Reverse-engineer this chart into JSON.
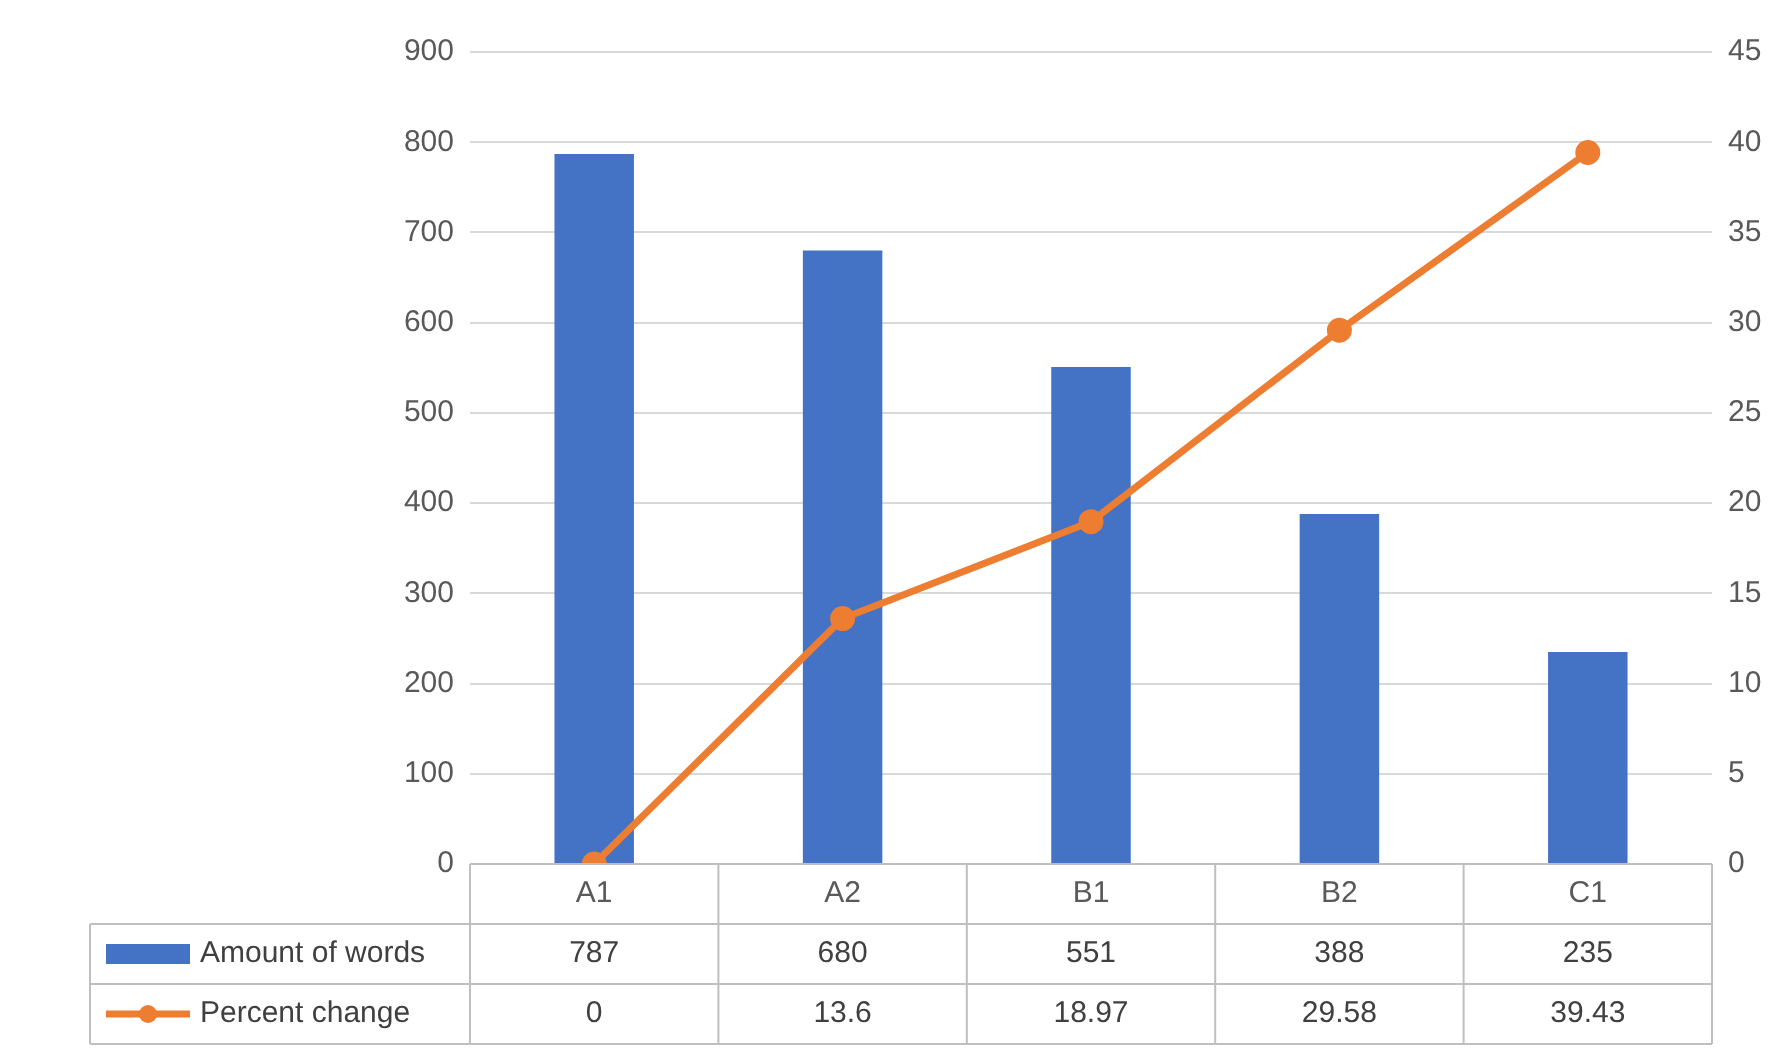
{
  "chart_data": {
    "type": "bar",
    "categories": [
      "A1",
      "A2",
      "B1",
      "B2",
      "C1"
    ],
    "series": [
      {
        "name": "Amount of words",
        "color": "#4472c4",
        "values": [
          787,
          680,
          551,
          388,
          235
        ]
      },
      {
        "name": "Percent change",
        "type": "line",
        "axis": "y2",
        "color": "#ed7d31",
        "values": [
          0,
          13.6,
          18.97,
          29.58,
          39.43
        ]
      }
    ],
    "ylim": [
      0,
      900
    ],
    "yticks": [
      0,
      100,
      200,
      300,
      400,
      500,
      600,
      700,
      800,
      900
    ],
    "y2lim": [
      0,
      45
    ],
    "y2ticks": [
      0,
      5,
      10,
      15,
      20,
      25,
      30,
      35,
      40,
      45
    ],
    "grid": "y",
    "legend": "bottom",
    "marker": "circle",
    "line_style": "solid",
    "data_labels": true
  }
}
